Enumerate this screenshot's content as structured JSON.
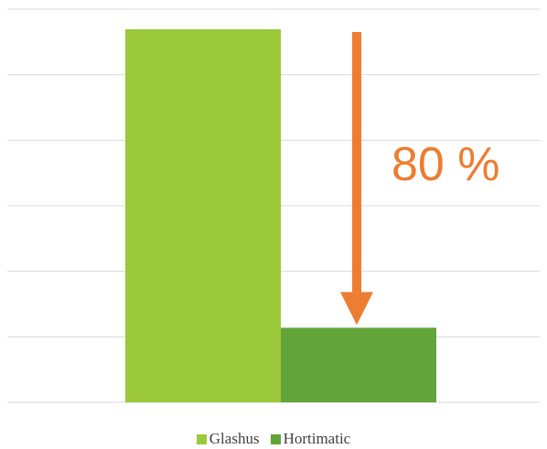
{
  "chart_data": {
    "type": "bar",
    "categories": [
      ""
    ],
    "series": [
      {
        "name": "Glashus",
        "values": [
          100
        ],
        "color": "#9BC93A"
      },
      {
        "name": "Hortimatic",
        "values": [
          20
        ],
        "color": "#62A33A"
      }
    ],
    "ylim": [
      0,
      100
    ],
    "grid": true,
    "legend_position": "bottom",
    "annotation": {
      "text": "80 %",
      "color": "#ED7D31",
      "from_value": 100,
      "to_value": 20
    }
  }
}
